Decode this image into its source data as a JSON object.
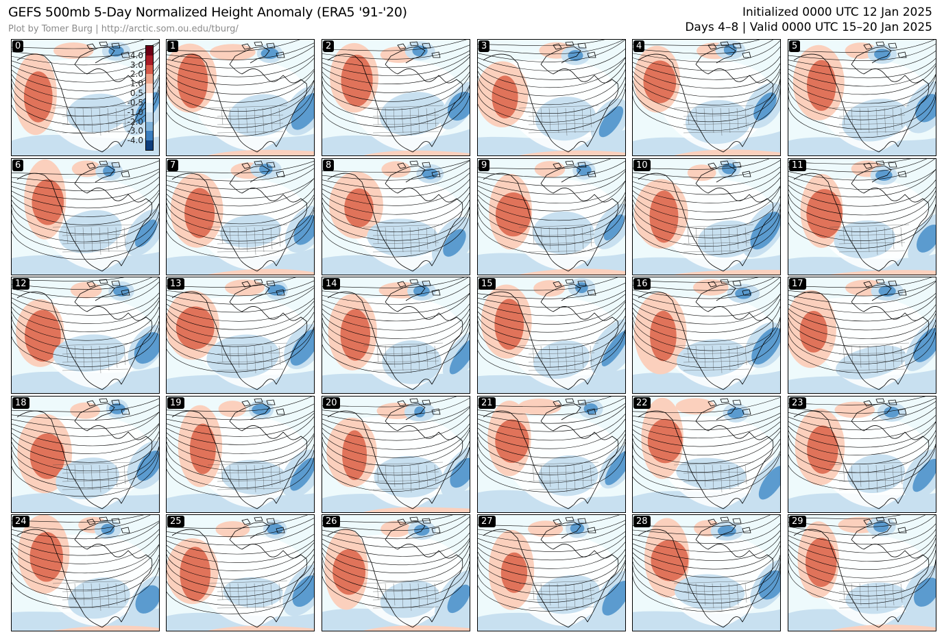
{
  "header": {
    "title": "GEFS 500mb 5-Day Normalized Height Anomaly (ERA5 '91-'20)",
    "credit": "Plot by Tomer Burg | http://arctic.som.ou.edu/tburg/",
    "initialized": "Initialized 0000 UTC 12 Jan 2025",
    "valid": "Days 4–8 | Valid 0000 UTC 15–20 Jan 2025"
  },
  "members": [
    "0",
    "1",
    "2",
    "3",
    "4",
    "5",
    "6",
    "7",
    "8",
    "9",
    "10",
    "11",
    "12",
    "13",
    "14",
    "15",
    "16",
    "17",
    "18",
    "19",
    "20",
    "21",
    "22",
    "23",
    "24",
    "25",
    "26",
    "27",
    "28",
    "29"
  ],
  "colorbar": {
    "ticks": [
      "4.0",
      "3.0",
      "2.0",
      "1.0",
      "0.5",
      "-0.5",
      "-1.0",
      "-2.0",
      "-3.0",
      "-4.0"
    ],
    "colors": [
      "#6b0016",
      "#a91c27",
      "#d65a4a",
      "#eda58c",
      "#fbd7c7",
      "#ffffff",
      "#e3f1fa",
      "#c4dcee",
      "#7fb2d9",
      "#3b7fbf",
      "#0f3e7d"
    ]
  },
  "map_colors": {
    "pos_strong": "#e0735a",
    "pos_weak": "#fbd0bd",
    "neg_weak": "#c8e0f0",
    "neg_strong": "#5b9bcf",
    "neutral": "#eefafc",
    "land_neutral": "#ffffff"
  }
}
